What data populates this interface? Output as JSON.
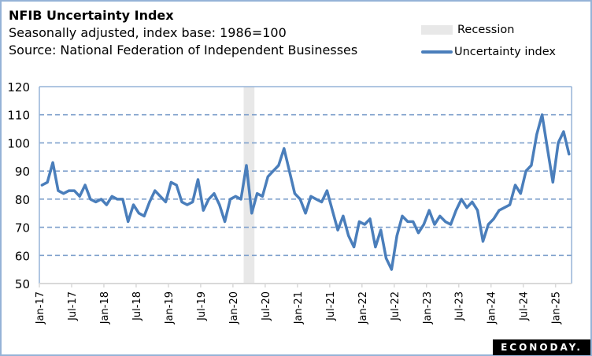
{
  "chart_data": {
    "type": "line",
    "title": "NFIB Uncertainty Index",
    "subtitle": "Seasonally adjusted, index base: 1986=100",
    "source": "Source: National Federation of Independent Businesses",
    "xlabel": "",
    "ylabel": "",
    "ylim": [
      50,
      120
    ],
    "yticks": [
      50,
      60,
      70,
      80,
      90,
      100,
      110,
      120
    ],
    "grid": "horizontal dashed",
    "legend_position": "top-right",
    "legend": [
      {
        "label": "Recession",
        "type": "band",
        "color": "#e8e8e8"
      },
      {
        "label": "Uncertainty index",
        "type": "line",
        "color": "#4a7ebb"
      }
    ],
    "x_start": "Jan-17",
    "x_end": "Mar-25",
    "frequency": "monthly",
    "xtick_labels": [
      "Jan-17",
      "Jul-17",
      "Jan-18",
      "Jul-18",
      "Jan-19",
      "Jul-19",
      "Jan-20",
      "Jul-20",
      "Jan-21",
      "Jul-21",
      "Jan-22",
      "Jul-22",
      "Jan-23",
      "Jul-23",
      "Jan-24",
      "Jul-24",
      "Jan-25"
    ],
    "recession": {
      "start": "Mar-20",
      "end": "Apr-20"
    },
    "series": [
      {
        "name": "Uncertainty index",
        "color": "#4a7ebb",
        "values": [
          85,
          86,
          93,
          83,
          82,
          83,
          83,
          81,
          85,
          80,
          79,
          80,
          78,
          81,
          80,
          80,
          72,
          78,
          75,
          74,
          79,
          83,
          81,
          79,
          86,
          85,
          79,
          78,
          79,
          87,
          76,
          80,
          82,
          78,
          72,
          80,
          81,
          80,
          92,
          75,
          82,
          81,
          88,
          90,
          92,
          98,
          90,
          82,
          80,
          75,
          81,
          80,
          79,
          83,
          76,
          69,
          74,
          67,
          63,
          72,
          71,
          73,
          63,
          69,
          59,
          55,
          67,
          74,
          72,
          72,
          68,
          71,
          76,
          71,
          74,
          72,
          71,
          76,
          80,
          77,
          79,
          76,
          65,
          71,
          73,
          76,
          77,
          78,
          85,
          82,
          90,
          92,
          103,
          110,
          98,
          86,
          100,
          104,
          96
        ]
      }
    ]
  },
  "branding": {
    "logo_text": "ECONODAY."
  }
}
